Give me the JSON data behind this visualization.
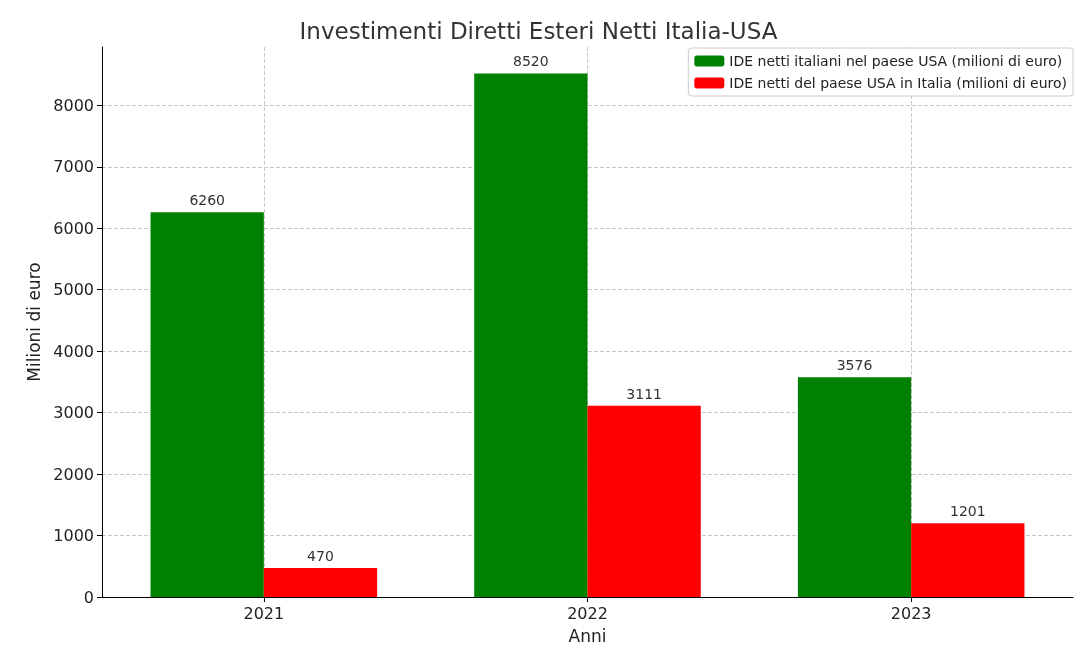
{
  "chart_data": {
    "type": "bar",
    "title": "Investimenti Diretti Esteri Netti Italia-USA",
    "xlabel": "Anni",
    "ylabel": "Milioni di euro",
    "categories": [
      "2021",
      "2022",
      "2023"
    ],
    "series": [
      {
        "name": "IDE netti italiani nel paese USA (milioni di euro)",
        "color": "#008000",
        "values": [
          6260,
          8520,
          3576
        ]
      },
      {
        "name": "IDE netti del paese USA in Italia (milioni di euro)",
        "color": "#ff0000",
        "values": [
          470,
          3111,
          1201
        ]
      }
    ],
    "ylim": [
      0,
      8950
    ],
    "yticks": [
      0,
      1000,
      2000,
      3000,
      4000,
      5000,
      6000,
      7000,
      8000
    ],
    "grid": true,
    "legend": "top right",
    "data_labels": true
  }
}
